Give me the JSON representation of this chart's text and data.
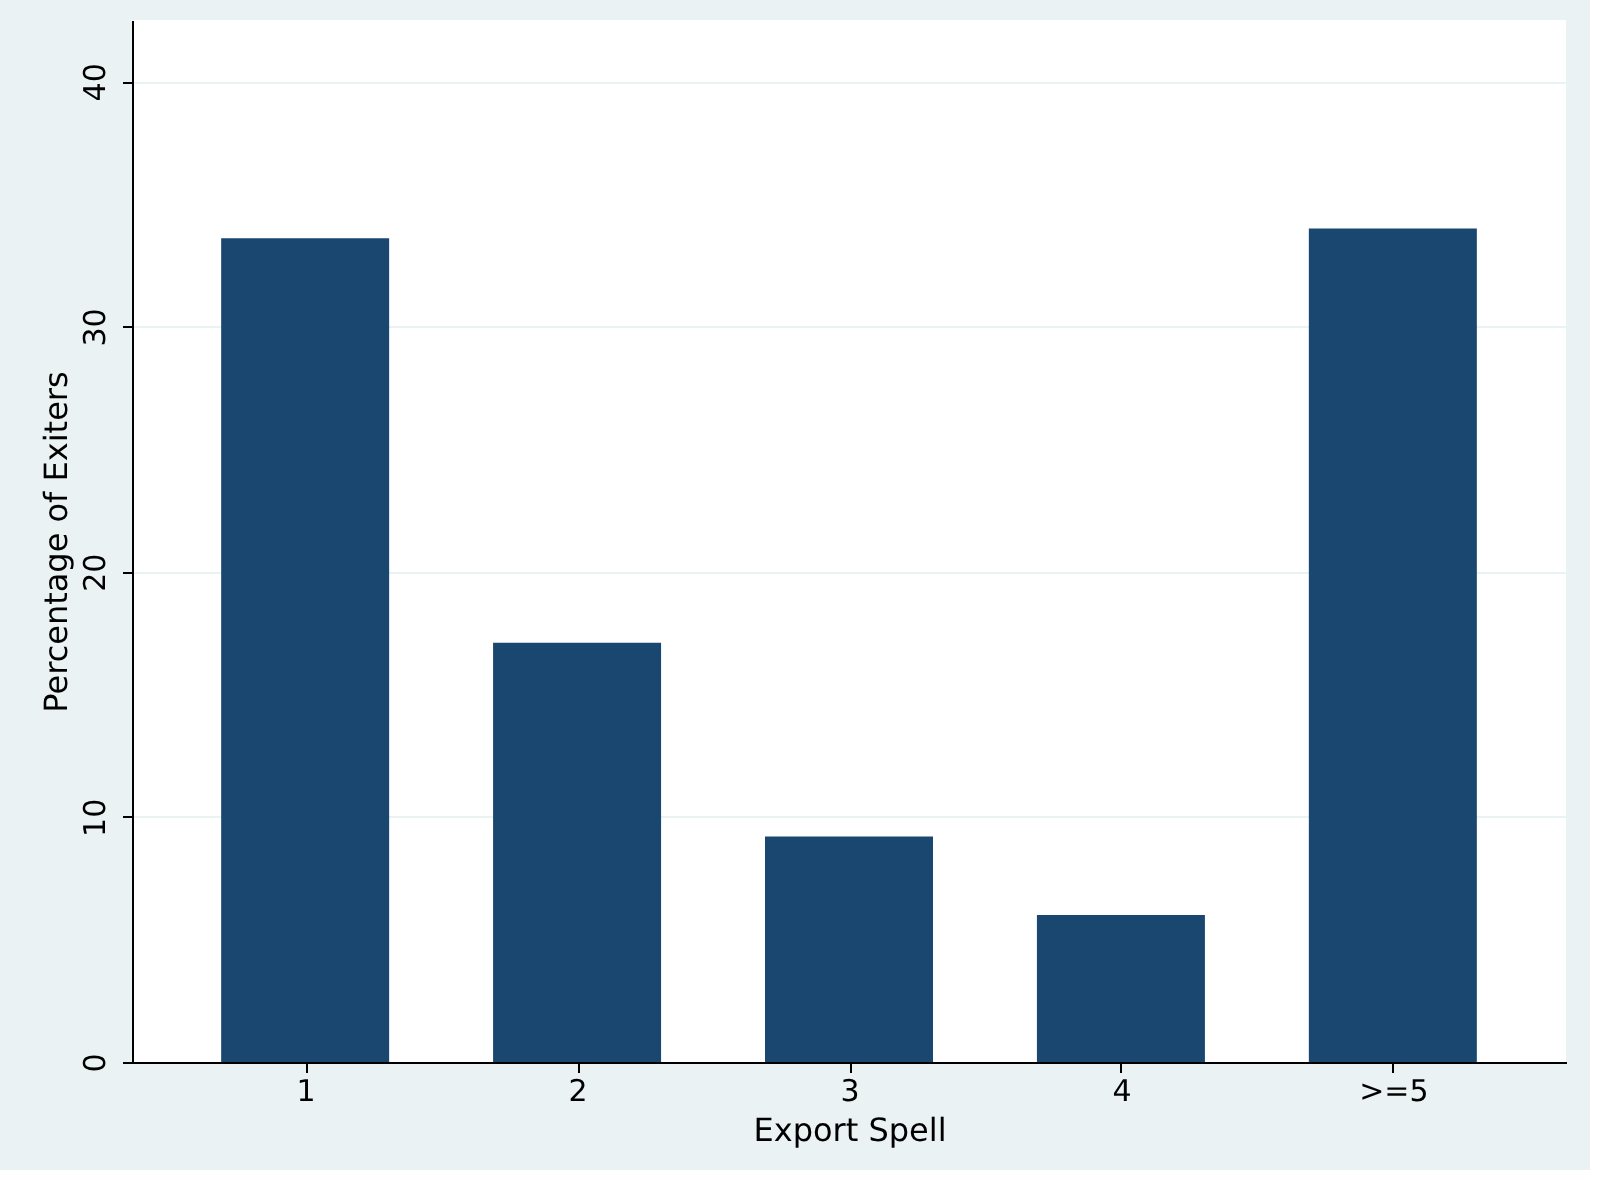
{
  "chart_data": {
    "type": "bar",
    "xlabel": "Export Spell",
    "ylabel": "Percentage of Exiters",
    "categories": [
      "1",
      "2",
      "3",
      "4",
      ">=5"
    ],
    "values": [
      33.6,
      17.1,
      9.2,
      6.0,
      34.0
    ],
    "color": "#1a476f",
    "ylim": [
      0,
      42.5
    ],
    "yticks": [
      0,
      10,
      20,
      30,
      40
    ],
    "grid": "y"
  }
}
